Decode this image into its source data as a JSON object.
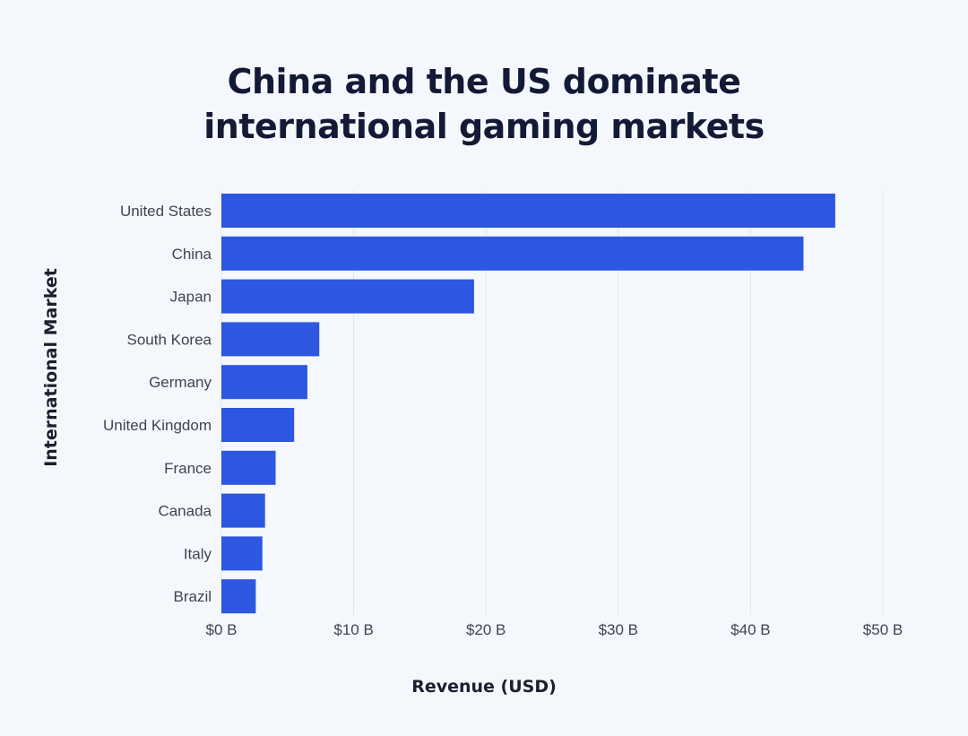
{
  "chart_data": {
    "type": "bar",
    "orientation": "horizontal",
    "title": [
      "China and the US dominate",
      "international gaming markets"
    ],
    "xlabel": "Revenue (USD)",
    "ylabel": "International Market",
    "categories": [
      "United States",
      "China",
      "Japan",
      "South Korea",
      "Germany",
      "United Kingdom",
      "France",
      "Canada",
      "Italy",
      "Brazil"
    ],
    "values": [
      46.4,
      44.0,
      19.1,
      7.4,
      6.5,
      5.5,
      4.1,
      3.3,
      3.1,
      2.6
    ],
    "xlim": [
      0,
      50
    ],
    "xticks": [
      0,
      10,
      20,
      30,
      40,
      50
    ],
    "xtick_labels": [
      "$0 B",
      "$10 B",
      "$20 B",
      "$30 B",
      "$40 B",
      "$50 B"
    ],
    "grid": "vertical",
    "bar_color": "#2d57e0",
    "legend": "none"
  }
}
